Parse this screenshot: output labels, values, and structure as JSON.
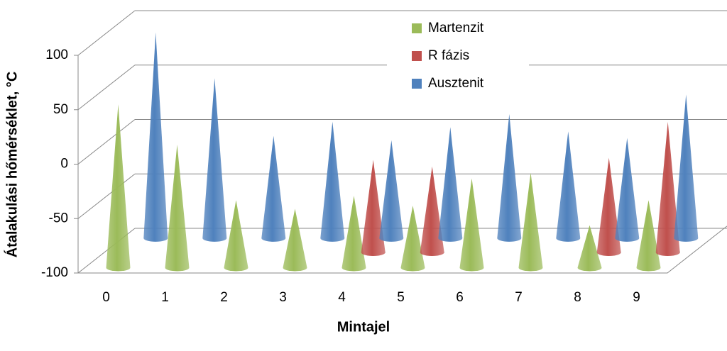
{
  "chart_data": {
    "type": "cone3d",
    "x_label": "Mintajel",
    "y_label": "Átalakulási hőmérséklet, °C",
    "categories": [
      "0",
      "1",
      "2",
      "3",
      "4",
      "5",
      "6",
      "7",
      "8",
      "9"
    ],
    "series": [
      {
        "name": "Martenzit",
        "color": "#9bbb59",
        "values": [
          50,
          13,
          -38,
          -46,
          -34,
          -43,
          -18,
          -13,
          -61,
          -38
        ]
      },
      {
        "name": "R fázis",
        "color": "#c0504d",
        "values": [
          null,
          null,
          null,
          null,
          -15,
          -21,
          null,
          null,
          -13,
          20
        ]
      },
      {
        "name": "Ausztenit",
        "color": "#4f81bd",
        "values": [
          89,
          47,
          -6,
          7,
          -10,
          2,
          14,
          -2,
          -8,
          32
        ]
      }
    ],
    "ylim": [
      -100,
      100
    ],
    "yticks": [
      -100,
      -50,
      0,
      50,
      100
    ],
    "grid": true,
    "legend": "top"
  }
}
